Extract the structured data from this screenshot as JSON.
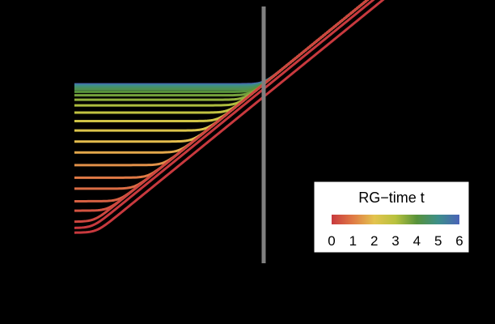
{
  "chart_data": {
    "type": "line",
    "title": "",
    "xlabel": "",
    "ylabel": "",
    "background": "#000000",
    "vertical_marker_color": "#808080",
    "legend": {
      "title": "RG−time t",
      "placement": "right",
      "colorbar_ticks": [
        "0",
        "1",
        "2",
        "3",
        "4",
        "5",
        "6"
      ],
      "colorbar_range": [
        0,
        6
      ],
      "colormap": [
        "#c8393e",
        "#e07a45",
        "#e3c34e",
        "#b8c23e",
        "#57923b",
        "#3d8f8a",
        "#4a63b8"
      ]
    },
    "xlim": [
      0,
      1
    ],
    "ylim": [
      0,
      1
    ],
    "curve_model": "y = max(threshold, reference line), smoothly joined; reference line passes through marker",
    "series": [
      {
        "t": 0.0,
        "plateau": 0.27,
        "offset": -0.04
      },
      {
        "t": 0.0,
        "plateau": 0.285,
        "offset": -0.015
      },
      {
        "t": 0.2,
        "plateau": 0.305,
        "offset": 0.0
      },
      {
        "t": 0.4,
        "plateau": 0.34,
        "offset": 0.0
      },
      {
        "t": 0.6,
        "plateau": 0.37,
        "offset": 0.0
      },
      {
        "t": 0.8,
        "plateau": 0.41,
        "offset": 0.0
      },
      {
        "t": 1.0,
        "plateau": 0.445,
        "offset": 0.0
      },
      {
        "t": 1.3,
        "plateau": 0.485,
        "offset": 0.0
      },
      {
        "t": 1.6,
        "plateau": 0.525,
        "offset": 0.0
      },
      {
        "t": 1.9,
        "plateau": 0.56,
        "offset": 0.0
      },
      {
        "t": 2.2,
        "plateau": 0.595,
        "offset": 0.0
      },
      {
        "t": 2.5,
        "plateau": 0.625,
        "offset": 0.0
      },
      {
        "t": 2.8,
        "plateau": 0.652,
        "offset": 0.0
      },
      {
        "t": 3.1,
        "plateau": 0.675,
        "offset": 0.0
      },
      {
        "t": 3.4,
        "plateau": 0.693,
        "offset": 0.0
      },
      {
        "t": 3.7,
        "plateau": 0.707,
        "offset": 0.0
      },
      {
        "t": 4.0,
        "plateau": 0.718,
        "offset": 0.0
      },
      {
        "t": 4.3,
        "plateau": 0.726,
        "offset": 0.0
      },
      {
        "t": 4.6,
        "plateau": 0.732,
        "offset": 0.0
      },
      {
        "t": 5.0,
        "plateau": 0.737,
        "offset": 0.0
      },
      {
        "t": 5.5,
        "plateau": 0.74,
        "offset": 0.0
      },
      {
        "t": 6.0,
        "plateau": 0.742,
        "offset": 0.0
      }
    ]
  }
}
